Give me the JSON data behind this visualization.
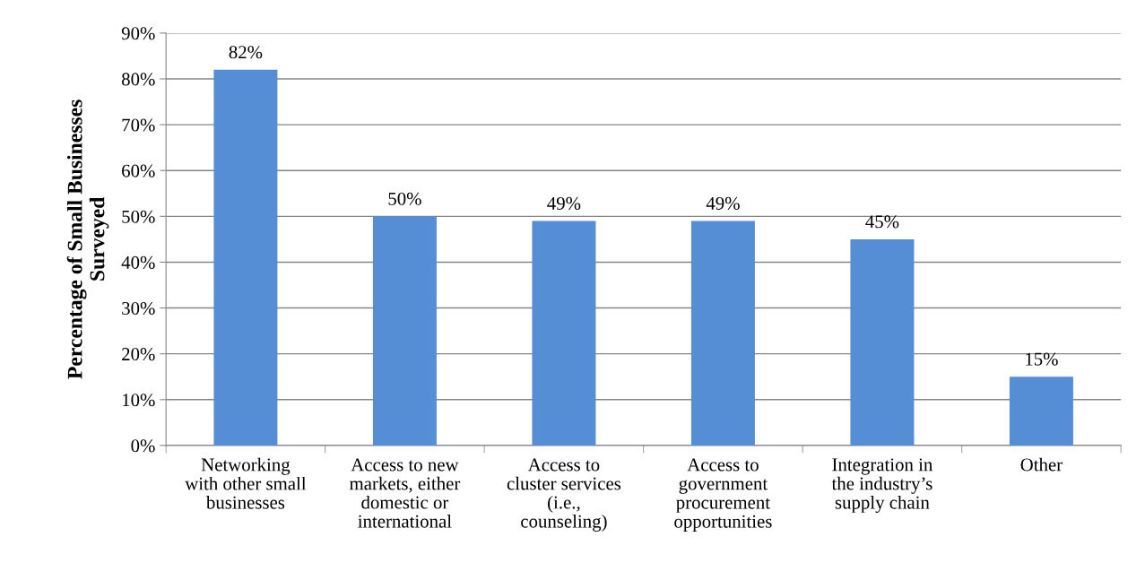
{
  "chart_data": {
    "type": "bar",
    "ylabel": "Percentage of Small Businesses\nSurveyed",
    "categories": [
      "Networking\nwith other small\nbusinesses",
      "Access to new\nmarkets, either\ndomestic or\ninternational",
      "Access to\ncluster services\n(i.e.,\ncounseling)",
      "Access to\ngovernment\nprocurement\nopportunities",
      "Integration in\nthe industry’s\nsupply chain",
      "Other"
    ],
    "values": [
      82,
      50,
      49,
      49,
      45,
      15
    ],
    "value_labels": [
      "82%",
      "50%",
      "49%",
      "49%",
      "45%",
      "15%"
    ],
    "color": "#558ed5",
    "ylim": [
      0,
      90
    ],
    "yticks": [
      {
        "value": 0,
        "label": "0%"
      },
      {
        "value": 10,
        "label": "10%"
      },
      {
        "value": 20,
        "label": "20%"
      },
      {
        "value": 30,
        "label": "30%"
      },
      {
        "value": 40,
        "label": "40%"
      },
      {
        "value": 50,
        "label": "50%"
      },
      {
        "value": 60,
        "label": "60%"
      },
      {
        "value": 70,
        "label": "70%"
      },
      {
        "value": 80,
        "label": "80%"
      },
      {
        "value": 90,
        "label": "90%"
      }
    ],
    "grid": "y",
    "legend": false
  }
}
